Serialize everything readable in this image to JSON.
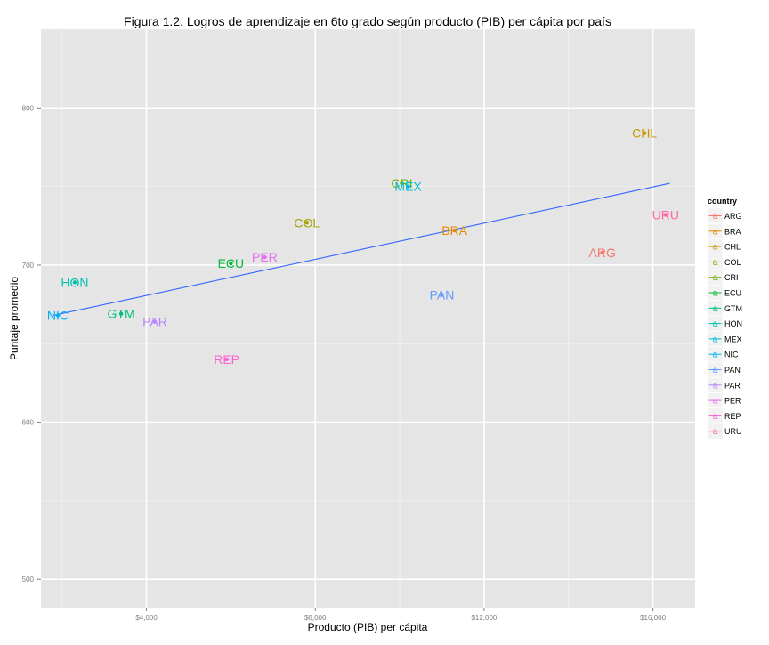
{
  "chart_data": {
    "type": "scatter",
    "title": "Figura 1.2. Logros de aprendizaje en 6to grado según producto (PIB) per cápita por país",
    "xlabel": "Producto (PIB) per cápita",
    "ylabel": "Puntaje promedio",
    "xlim": [
      1500,
      17000
    ],
    "ylim": [
      482,
      850
    ],
    "x_ticks": [
      4000,
      8000,
      12000,
      16000
    ],
    "x_tick_labels": [
      "$4,000",
      "$8,000",
      "$12,000",
      "$16,000"
    ],
    "y_ticks": [
      500,
      600,
      700,
      800
    ],
    "y_tick_labels": [
      "500",
      "600",
      "700",
      "800"
    ],
    "grid": true,
    "legend": {
      "title": "country",
      "placement": "right"
    },
    "series": [
      {
        "name": "ARG",
        "color": "#F8766D",
        "x": 14800,
        "y": 708
      },
      {
        "name": "BRA",
        "color": "#E58700",
        "x": 11300,
        "y": 722
      },
      {
        "name": "CHL",
        "color": "#C99800",
        "x": 15800,
        "y": 784
      },
      {
        "name": "COL",
        "color": "#A3A500",
        "x": 7800,
        "y": 727
      },
      {
        "name": "CRI",
        "color": "#6BB100",
        "x": 10050,
        "y": 752
      },
      {
        "name": "ECU",
        "color": "#00BA38",
        "x": 6000,
        "y": 701
      },
      {
        "name": "GTM",
        "color": "#00BF7D",
        "x": 3400,
        "y": 669
      },
      {
        "name": "HON",
        "color": "#00C0AF",
        "x": 2300,
        "y": 689
      },
      {
        "name": "MEX",
        "color": "#00BCD8",
        "x": 10200,
        "y": 750
      },
      {
        "name": "NIC",
        "color": "#00B0F6",
        "x": 1900,
        "y": 668
      },
      {
        "name": "PAN",
        "color": "#619CFF",
        "x": 11000,
        "y": 681
      },
      {
        "name": "PAR",
        "color": "#B983FF",
        "x": 4200,
        "y": 664
      },
      {
        "name": "PER",
        "color": "#E76BF3",
        "x": 6800,
        "y": 705
      },
      {
        "name": "REP",
        "color": "#FD61D1",
        "x": 5900,
        "y": 640
      },
      {
        "name": "URU",
        "color": "#FF67A4",
        "x": 16300,
        "y": 732
      }
    ],
    "trend_line": {
      "color": "#3366FF",
      "x": [
        1800,
        16400
      ],
      "y": [
        668,
        752
      ]
    }
  }
}
